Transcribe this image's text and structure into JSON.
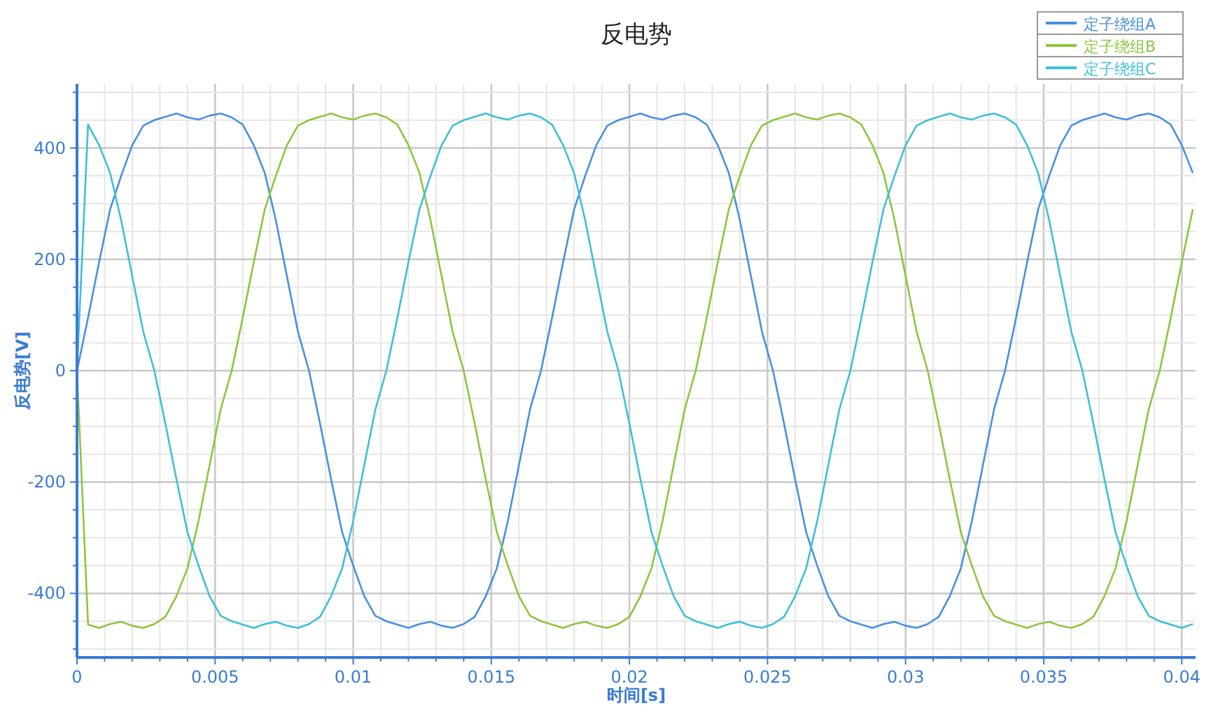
{
  "chart_data": {
    "type": "line",
    "title": "反电势",
    "xlabel": "时间[s]",
    "ylabel": "反电势[V]",
    "x": [
      0,
      0.0004,
      0.0008,
      0.0012,
      0.0016,
      0.002,
      0.0024,
      0.0028,
      0.0032,
      0.0036,
      0.004,
      0.0044,
      0.0048,
      0.0052,
      0.0056,
      0.006,
      0.0064,
      0.0068,
      0.0072,
      0.0076,
      0.008,
      0.0084,
      0.0088,
      0.0092,
      0.0096,
      0.01,
      0.0104,
      0.0108,
      0.0112,
      0.0116,
      0.012,
      0.0124,
      0.0128,
      0.0132,
      0.0136,
      0.014,
      0.0144,
      0.0148,
      0.0152,
      0.0156,
      0.016,
      0.0164,
      0.0168,
      0.0172,
      0.0176,
      0.018,
      0.0184,
      0.0188,
      0.0192,
      0.0196,
      0.02,
      0.0204,
      0.0208,
      0.0212,
      0.0216,
      0.022,
      0.0224,
      0.0228,
      0.0232,
      0.0236,
      0.024,
      0.0244,
      0.0248,
      0.0252,
      0.0256,
      0.026,
      0.0264,
      0.0268,
      0.0272,
      0.0276,
      0.028,
      0.0284,
      0.0288,
      0.0292,
      0.0296,
      0.03,
      0.0304,
      0.0308,
      0.0312,
      0.0316,
      0.032,
      0.0324,
      0.0328,
      0.0332,
      0.0336,
      0.034,
      0.0344,
      0.0348,
      0.0352,
      0.0356,
      0.036,
      0.0364,
      0.0368,
      0.0372,
      0.0376,
      0.038,
      0.0384,
      0.0388,
      0.0392,
      0.0396,
      0.04,
      0.0404
    ],
    "series": [
      {
        "name": "定子绕组A",
        "color": "#4a8fdf",
        "values": [
          0,
          95,
          195,
          290,
          350,
          405,
          440,
          450,
          456,
          462,
          455,
          451,
          458,
          462,
          455,
          442,
          405,
          355,
          270,
          170,
          70,
          0,
          -95,
          -195,
          -290,
          -350,
          -405,
          -440,
          -450,
          -456,
          -462,
          -455,
          -451,
          -458,
          -462,
          -455,
          -442,
          -405,
          -355,
          -270,
          -170,
          -70,
          0,
          95,
          195,
          290,
          350,
          405,
          440,
          450,
          456,
          462,
          455,
          451,
          458,
          462,
          455,
          442,
          405,
          355,
          270,
          170,
          70,
          0,
          -95,
          -195,
          -290,
          -350,
          -405,
          -440,
          -450,
          -456,
          -462,
          -455,
          -451,
          -458,
          -462,
          -455,
          -442,
          -405,
          -355,
          -270,
          -170,
          -70,
          0,
          95,
          195,
          290,
          350,
          405,
          440,
          450,
          456,
          462,
          455,
          451,
          458,
          462,
          455,
          442,
          405,
          355
        ]
      },
      {
        "name": "定子绕组B",
        "color": "#8dc63f",
        "values": [
          0,
          -456,
          -462,
          -455,
          -451,
          -458,
          -462,
          -455,
          -442,
          -405,
          -355,
          -270,
          -170,
          -70,
          0,
          95,
          195,
          290,
          350,
          405,
          440,
          450,
          456,
          462,
          455,
          451,
          458,
          462,
          455,
          442,
          405,
          355,
          270,
          170,
          70,
          0,
          -95,
          -195,
          -290,
          -350,
          -405,
          -440,
          -450,
          -456,
          -462,
          -455,
          -451,
          -458,
          -462,
          -455,
          -442,
          -405,
          -355,
          -270,
          -170,
          -70,
          0,
          95,
          195,
          290,
          350,
          405,
          440,
          450,
          456,
          462,
          455,
          451,
          458,
          462,
          455,
          442,
          405,
          355,
          270,
          170,
          70,
          0,
          -95,
          -195,
          -290,
          -350,
          -405,
          -440,
          -450,
          -456,
          -462,
          -455,
          -451,
          -458,
          -462,
          -455,
          -442,
          -405,
          -355,
          -270,
          -170,
          -70,
          0,
          95,
          195,
          290
        ]
      },
      {
        "name": "定子绕组C",
        "color": "#3fbfd8",
        "values": [
          0,
          442,
          405,
          355,
          270,
          170,
          70,
          0,
          -95,
          -195,
          -290,
          -350,
          -405,
          -440,
          -450,
          -456,
          -462,
          -455,
          -451,
          -458,
          -462,
          -455,
          -442,
          -405,
          -355,
          -270,
          -170,
          -70,
          0,
          95,
          195,
          290,
          350,
          405,
          440,
          450,
          456,
          462,
          455,
          451,
          458,
          462,
          455,
          442,
          405,
          355,
          270,
          170,
          70,
          0,
          -95,
          -195,
          -290,
          -350,
          -405,
          -440,
          -450,
          -456,
          -462,
          -455,
          -451,
          -458,
          -462,
          -455,
          -442,
          -405,
          -355,
          -270,
          -170,
          -70,
          0,
          95,
          195,
          290,
          350,
          405,
          440,
          450,
          456,
          462,
          455,
          451,
          458,
          462,
          455,
          442,
          405,
          355,
          270,
          170,
          70,
          0,
          -95,
          -195,
          -290,
          -350,
          -405,
          -440,
          -450,
          -456,
          -462,
          -455
        ]
      }
    ],
    "xlim": [
      0,
      0.0405
    ],
    "ylim": [
      -515,
      515
    ],
    "xticks": [
      0,
      {
        "value": 0.001,
        "label": null
      },
      {
        "value": 0.002,
        "label": null
      },
      {
        "value": 0.003,
        "label": null
      },
      {
        "value": 0.004,
        "label": null
      },
      0.005,
      {
        "value": 0.006,
        "label": null
      },
      {
        "value": 0.007,
        "label": null
      },
      {
        "value": 0.008,
        "label": null
      },
      {
        "value": 0.009,
        "label": null
      },
      0.01,
      {
        "value": 0.011,
        "label": null
      },
      {
        "value": 0.012,
        "label": null
      },
      {
        "value": 0.013,
        "label": null
      },
      {
        "value": 0.014,
        "label": null
      },
      0.015,
      {
        "value": 0.016,
        "label": null
      },
      {
        "value": 0.017,
        "label": null
      },
      {
        "value": 0.018,
        "label": null
      },
      {
        "value": 0.019,
        "label": null
      },
      0.02,
      {
        "value": 0.021,
        "label": null
      },
      {
        "value": 0.022,
        "label": null
      },
      {
        "value": 0.023,
        "label": null
      },
      {
        "value": 0.024,
        "label": null
      },
      0.025,
      {
        "value": 0.026,
        "label": null
      },
      {
        "value": 0.027,
        "label": null
      },
      {
        "value": 0.028,
        "label": null
      },
      {
        "value": 0.029,
        "label": null
      },
      0.03,
      {
        "value": 0.031,
        "label": null
      },
      {
        "value": 0.032,
        "label": null
      },
      {
        "value": 0.033,
        "label": null
      },
      {
        "value": 0.034,
        "label": null
      },
      0.035,
      {
        "value": 0.036,
        "label": null
      },
      {
        "value": 0.037,
        "label": null
      },
      {
        "value": 0.038,
        "label": null
      },
      {
        "value": 0.039,
        "label": null
      },
      0.04
    ],
    "yticks": [
      {
        "value": -500,
        "label": null
      },
      {
        "value": -450,
        "label": null
      },
      -400,
      {
        "value": -350,
        "label": null
      },
      {
        "value": -300,
        "label": null
      },
      {
        "value": -250,
        "label": null
      },
      -200,
      {
        "value": -150,
        "label": null
      },
      {
        "value": -100,
        "label": null
      },
      {
        "value": -50,
        "label": null
      },
      0,
      {
        "value": 50,
        "label": null
      },
      {
        "value": 100,
        "label": null
      },
      {
        "value": 150,
        "label": null
      },
      200,
      {
        "value": 250,
        "label": null
      },
      {
        "value": 300,
        "label": null
      },
      {
        "value": 350,
        "label": null
      },
      400,
      {
        "value": 450,
        "label": null
      },
      {
        "value": 500,
        "label": null
      }
    ],
    "grid": true,
    "legend": "top right",
    "line_style": "solid",
    "marker": "none"
  }
}
